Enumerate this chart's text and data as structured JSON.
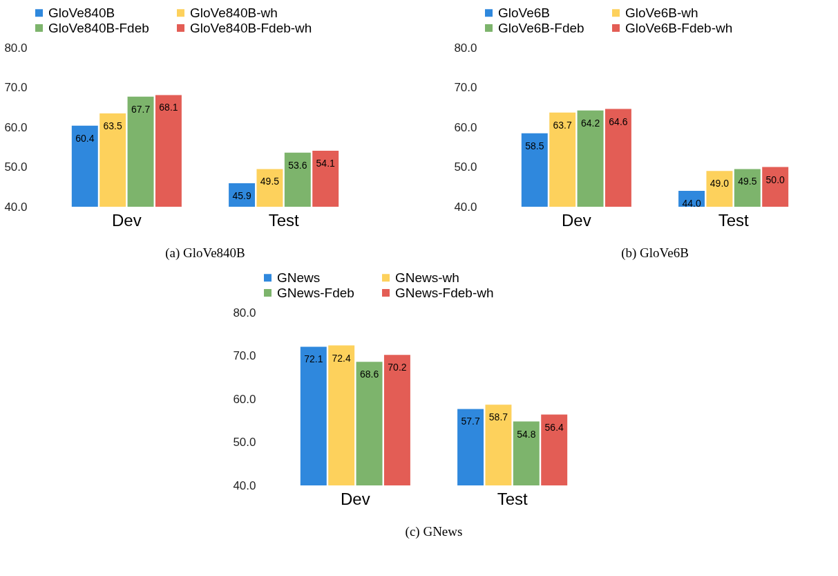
{
  "chart_data": [
    {
      "type": "bar",
      "title": "(a) GloVe840B",
      "categories": [
        "Dev",
        "Test"
      ],
      "series": [
        {
          "name": "GloVe840B",
          "color": "#2f88dd",
          "values": [
            60.4,
            45.9
          ],
          "value_labels": [
            "60.4",
            "45.9"
          ]
        },
        {
          "name": "GloVe840B-wh",
          "color": "#fdd15c",
          "values": [
            63.5,
            49.5
          ],
          "value_labels": [
            "63.5",
            "49.5"
          ]
        },
        {
          "name": "GloVe840B-Fdeb",
          "color": "#7db46c",
          "values": [
            67.7,
            53.6
          ],
          "value_labels": [
            "67.7",
            "53.6"
          ]
        },
        {
          "name": "GloVe840B-Fdeb-wh",
          "color": "#e35d55",
          "values": [
            68.1,
            54.1
          ],
          "value_labels": [
            "68.1",
            "54.1"
          ]
        }
      ],
      "ylim": [
        40,
        80
      ],
      "yticks": [
        {
          "value": 40,
          "label": "40.0"
        },
        {
          "value": 50,
          "label": "50.0"
        },
        {
          "value": 60,
          "label": "60.0"
        },
        {
          "value": 70,
          "label": "70.0"
        },
        {
          "value": 80,
          "label": "80.0"
        }
      ],
      "legend": "top",
      "grid": false
    },
    {
      "type": "bar",
      "title": "(b) GloVe6B",
      "categories": [
        "Dev",
        "Test"
      ],
      "series": [
        {
          "name": "GloVe6B",
          "color": "#2f88dd",
          "values": [
            58.5,
            44.0
          ],
          "value_labels": [
            "58.5",
            "44.0"
          ]
        },
        {
          "name": "GloVe6B-wh",
          "color": "#fdd15c",
          "values": [
            63.7,
            49.0
          ],
          "value_labels": [
            "63.7",
            "49.0"
          ]
        },
        {
          "name": "GloVe6B-Fdeb",
          "color": "#7db46c",
          "values": [
            64.2,
            49.5
          ],
          "value_labels": [
            "64.2",
            "49.5"
          ]
        },
        {
          "name": "GloVe6B-Fdeb-wh",
          "color": "#e35d55",
          "values": [
            64.6,
            50.0
          ],
          "value_labels": [
            "64.6",
            "50.0"
          ]
        }
      ],
      "ylim": [
        40,
        80
      ],
      "yticks": [
        {
          "value": 40,
          "label": "40.0"
        },
        {
          "value": 50,
          "label": "50.0"
        },
        {
          "value": 60,
          "label": "60.0"
        },
        {
          "value": 70,
          "label": "70.0"
        },
        {
          "value": 80,
          "label": "80.0"
        }
      ],
      "legend": "top",
      "grid": false
    },
    {
      "type": "bar",
      "title": "(c) GNews",
      "categories": [
        "Dev",
        "Test"
      ],
      "series": [
        {
          "name": "GNews",
          "color": "#2f88dd",
          "values": [
            72.1,
            57.7
          ],
          "value_labels": [
            "72.1",
            "57.7"
          ]
        },
        {
          "name": "GNews-wh",
          "color": "#fdd15c",
          "values": [
            72.4,
            58.7
          ],
          "value_labels": [
            "72.4",
            "58.7"
          ]
        },
        {
          "name": "GNews-Fdeb",
          "color": "#7db46c",
          "values": [
            68.6,
            54.8
          ],
          "value_labels": [
            "68.6",
            "54.8"
          ]
        },
        {
          "name": "GNews-Fdeb-wh",
          "color": "#e35d55",
          "values": [
            70.2,
            56.4
          ],
          "value_labels": [
            "70.2",
            "56.4"
          ]
        }
      ],
      "ylim": [
        40,
        80
      ],
      "yticks": [
        {
          "value": 40,
          "label": "40.0"
        },
        {
          "value": 50,
          "label": "50.0"
        },
        {
          "value": 60,
          "label": "60.0"
        },
        {
          "value": 70,
          "label": "70.0"
        },
        {
          "value": 80,
          "label": "80.0"
        }
      ],
      "legend": "top",
      "grid": false
    }
  ]
}
